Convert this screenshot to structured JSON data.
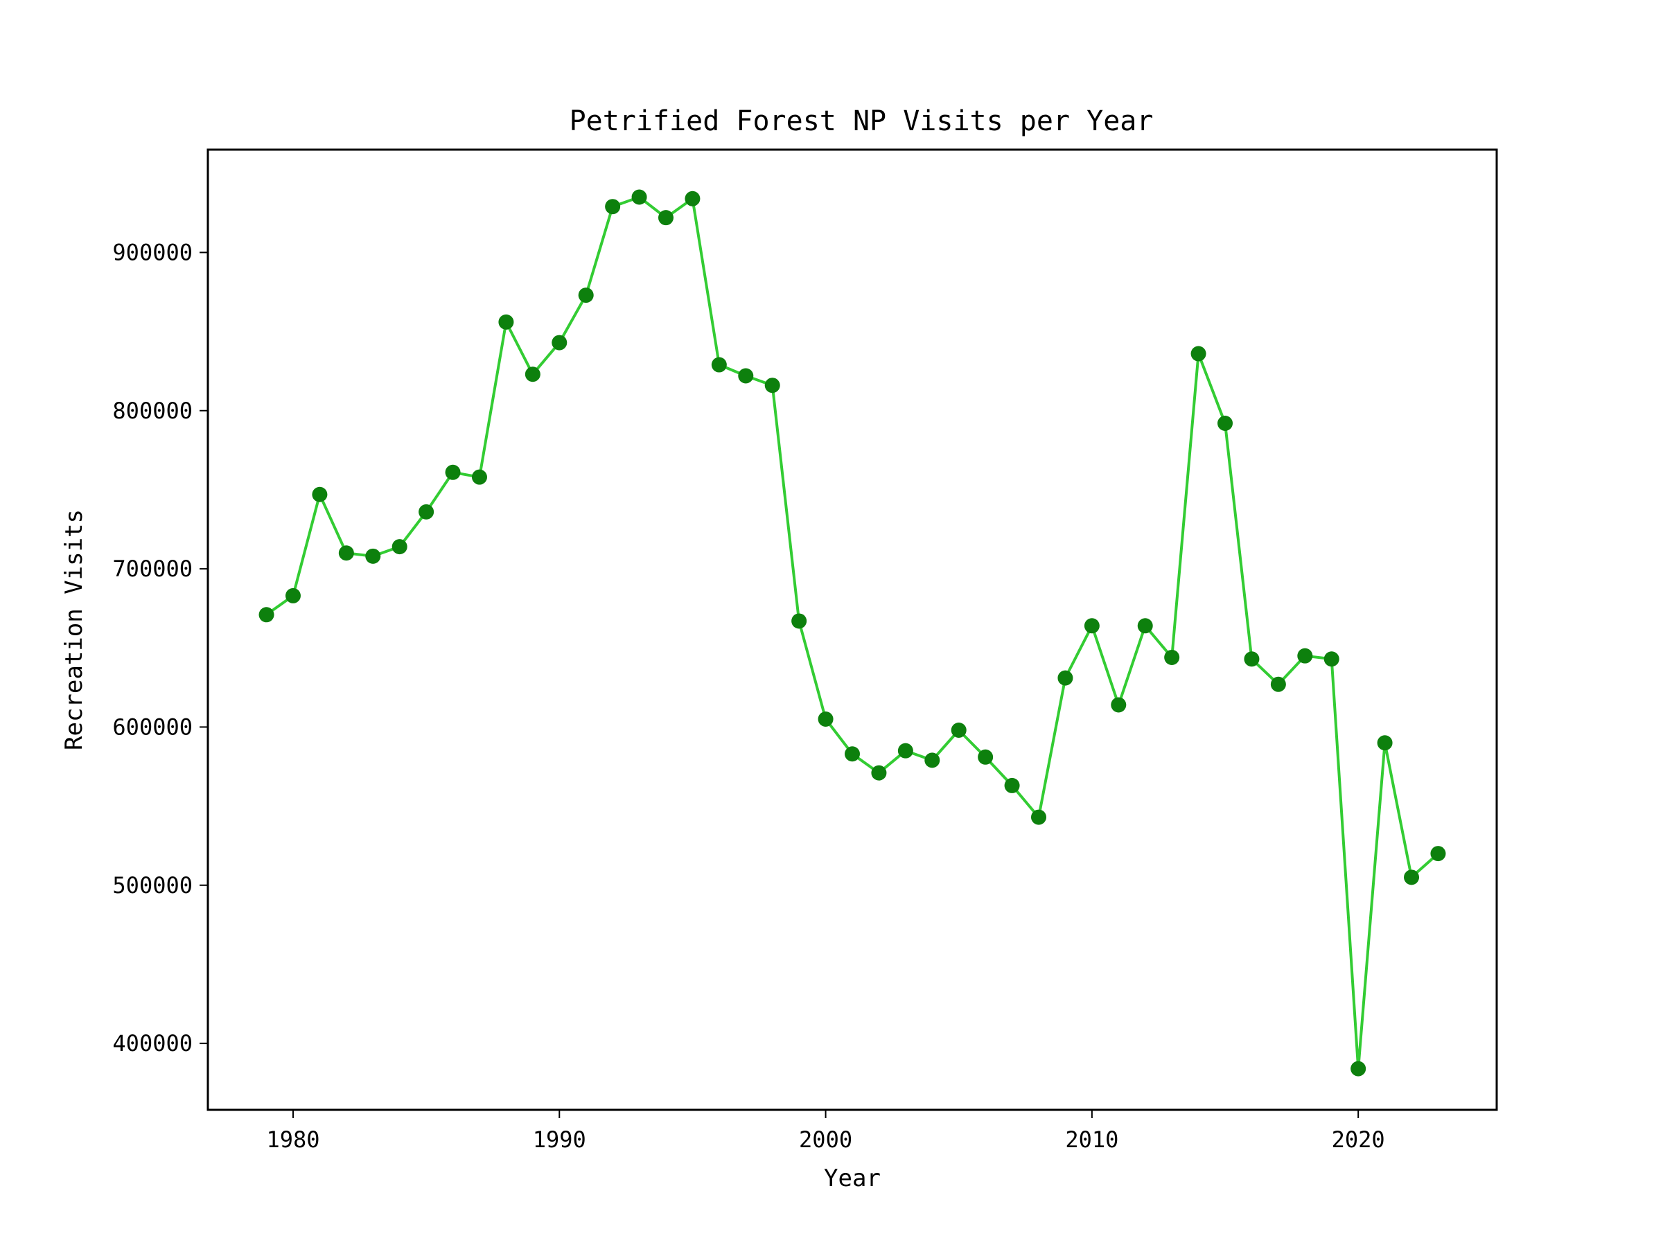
{
  "chart_data": {
    "type": "line",
    "title": "Petrified Forest NP Visits per Year",
    "xlabel": "Year",
    "ylabel": "Recreation Visits",
    "xlim": [
      1976.8,
      2025.2
    ],
    "ylim": [
      358000,
      965000
    ],
    "xticks": [
      1980,
      1990,
      2000,
      2010,
      2020
    ],
    "xtick_labels": [
      "1980",
      "1990",
      "2000",
      "2010",
      "2020"
    ],
    "yticks": [
      400000,
      500000,
      600000,
      700000,
      800000,
      900000
    ],
    "ytick_labels": [
      "400000",
      "500000",
      "600000",
      "700000",
      "800000",
      "900000"
    ],
    "grid": false,
    "legend": "none",
    "series": [
      {
        "line_color": "#33cc33",
        "marker_color": "#0d800d",
        "x": [
          1979,
          1980,
          1981,
          1982,
          1983,
          1984,
          1985,
          1986,
          1987,
          1988,
          1989,
          1990,
          1991,
          1992,
          1993,
          1994,
          1995,
          1996,
          1997,
          1998,
          1999,
          2000,
          2001,
          2002,
          2003,
          2004,
          2005,
          2006,
          2007,
          2008,
          2009,
          2010,
          2011,
          2012,
          2013,
          2014,
          2015,
          2016,
          2017,
          2018,
          2019,
          2020,
          2021,
          2022,
          2023
        ],
        "y": [
          671000,
          683000,
          747000,
          710000,
          708000,
          714000,
          736000,
          761000,
          758000,
          856000,
          823000,
          843000,
          873000,
          929000,
          935000,
          922000,
          934000,
          829000,
          822000,
          816000,
          667000,
          605000,
          583000,
          571000,
          585000,
          579000,
          598000,
          581000,
          563000,
          543000,
          631000,
          664000,
          614000,
          664000,
          644000,
          836000,
          792000,
          643000,
          627000,
          645000,
          643000,
          384000,
          590000,
          505000,
          520000
        ]
      }
    ]
  }
}
